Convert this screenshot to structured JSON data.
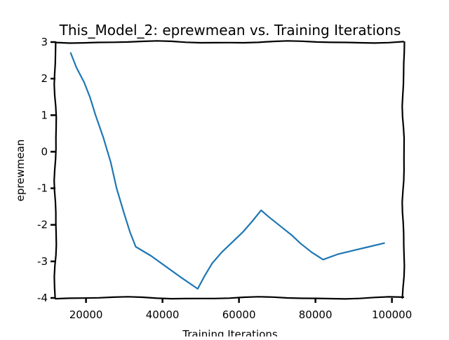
{
  "chart_data": {
    "type": "line",
    "title": "This_Model_2: eprewmean vs. Training Iterations",
    "xlabel": "Training Iterations",
    "ylabel": "eprewmean",
    "xlim": [
      12000,
      103000
    ],
    "ylim": [
      -4.0,
      3.0
    ],
    "x_ticks": [
      20000,
      40000,
      60000,
      80000,
      100000
    ],
    "x_tick_labels": [
      "20000",
      "40000",
      "60000",
      "80000",
      "100000"
    ],
    "y_ticks": [
      -4,
      -3,
      -2,
      -1,
      0,
      1,
      2,
      3
    ],
    "y_tick_labels": [
      "-4",
      "-3",
      "-2",
      "-1",
      "0",
      "1",
      "2",
      "3"
    ],
    "grid": false,
    "series": [
      {
        "color": "#1f77b4",
        "x": [
          16000,
          17500,
          19500,
          21000,
          22500,
          24500,
          26500,
          28000,
          30000,
          31500,
          33000,
          37000,
          41000,
          45000,
          49200,
          51000,
          53000,
          55500,
          58000,
          61000,
          63500,
          65800,
          68000,
          71000,
          74000,
          76000,
          79000,
          82000,
          86000,
          90000,
          94000,
          98000
        ],
        "y": [
          2.7,
          2.3,
          1.9,
          1.5,
          1.0,
          0.4,
          -0.3,
          -1.0,
          -1.7,
          -2.2,
          -2.6,
          -2.85,
          -3.15,
          -3.45,
          -3.75,
          -3.4,
          -3.05,
          -2.75,
          -2.5,
          -2.2,
          -1.9,
          -1.6,
          -1.8,
          -2.05,
          -2.3,
          -2.5,
          -2.75,
          -2.95,
          -2.8,
          -2.7,
          -2.6,
          -2.5
        ]
      }
    ]
  }
}
